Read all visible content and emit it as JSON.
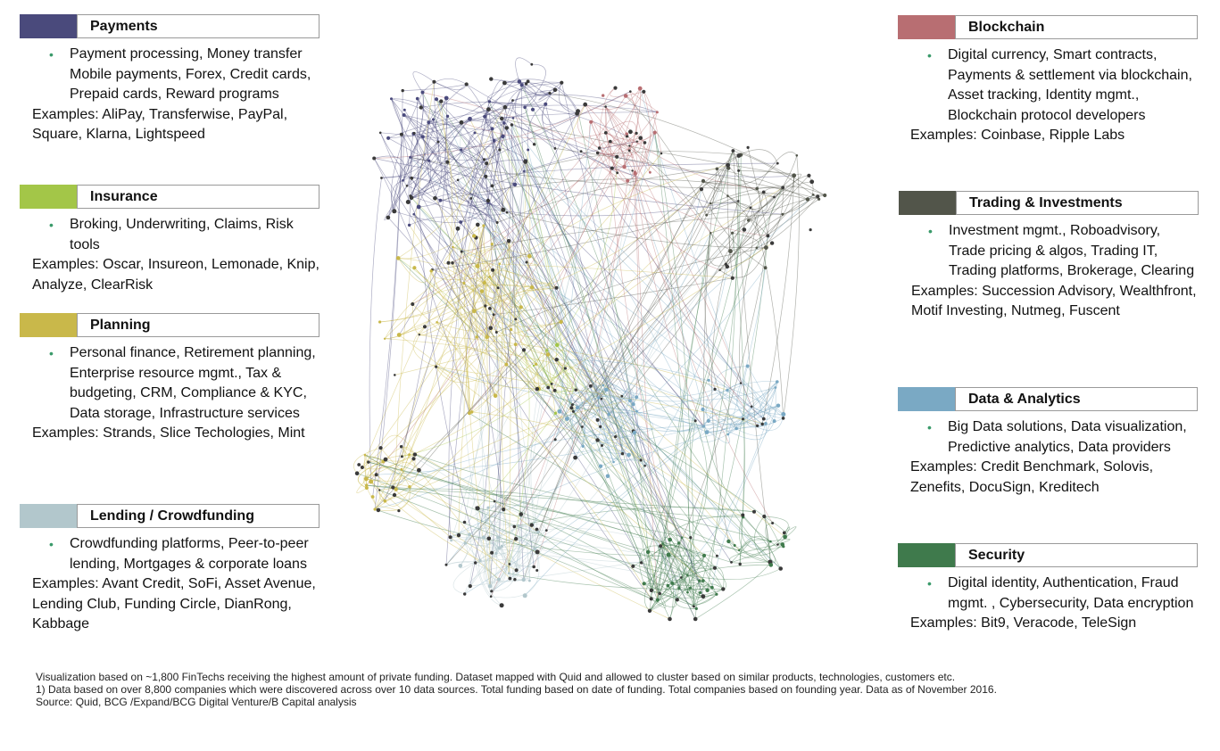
{
  "categories": [
    {
      "key": "payments",
      "title": "Payments",
      "color": "#4a4a7c",
      "bullets": "Payment processing, Money transfer Mobile payments, Forex, Credit cards, Prepaid cards, Reward programs",
      "examples": "Examples: AliPay, Transferwise, PayPal, Square, Klarna, Lightspeed"
    },
    {
      "key": "insurance",
      "title": "Insurance",
      "color": "#a3c648",
      "bullets": "Broking, Underwriting, Claims, Risk tools",
      "examples": "Examples: Oscar, Insureon, Lemonade, Knip, Analyze, ClearRisk"
    },
    {
      "key": "planning",
      "title": "Planning",
      "color": "#c9b84a",
      "bullets": "Personal finance, Retirement planning, Enterprise resource mgmt., Tax & budgeting, CRM, Compliance & KYC, Data storage, Infrastructure services",
      "examples": "Examples: Strands, Slice Techologies, Mint"
    },
    {
      "key": "lending",
      "title": "Lending / Crowdfunding",
      "color": "#b2c7cc",
      "bullets": "Crowdfunding platforms, Peer-to-peer lending, Mortgages & corporate loans",
      "examples": "Examples: Avant Credit, SoFi, Asset Avenue, Lending Club, Funding Circle, DianRong, Kabbage"
    },
    {
      "key": "blockchain",
      "title": "Blockchain",
      "color": "#b86e72",
      "bullets": "Digital currency, Smart contracts, Payments & settlement via blockchain, Asset tracking, Identity mgmt., Blockchain protocol developers",
      "examples": "Examples: Coinbase, Ripple Labs"
    },
    {
      "key": "trading",
      "title": "Trading & Investments",
      "color": "#52554a",
      "bullets": "Investment mgmt., Roboadvisory, Trade pricing & algos, Trading IT, Trading platforms, Brokerage, Clearing",
      "examples": "Examples: Succession Advisory, Wealthfront, Motif Investing, Nutmeg, Fuscent"
    },
    {
      "key": "data",
      "title": "Data & Analytics",
      "color": "#7aa9c4",
      "bullets": "Big Data solutions, Data visualization, Predictive analytics, Data providers",
      "examples": "Examples: Credit Benchmark, Solovis, Zenefits, DocuSign, Kreditech"
    },
    {
      "key": "security",
      "title": "Security",
      "color": "#3f7a4c",
      "bullets": "Digital identity, Authentication, Fraud mgmt. , Cybersecurity, Data encryption",
      "examples": "Examples: Bit9, Veracode, TeleSign"
    }
  ],
  "notes": {
    "line1": "Visualization based on ~1,800 FinTechs receiving the highest amount of private funding. Dataset mapped with Quid and allowed to cluster based on similar products, technologies, customers etc.",
    "line2": "1) Data based on over 8,800 companies which were discovered across over 10 data sources. Total funding based on date of funding. Total companies based on founding year. Data as of November 2016.",
    "source": "Source: Quid, BCG /Expand/BCG Digital Venture/B Capital analysis"
  }
}
